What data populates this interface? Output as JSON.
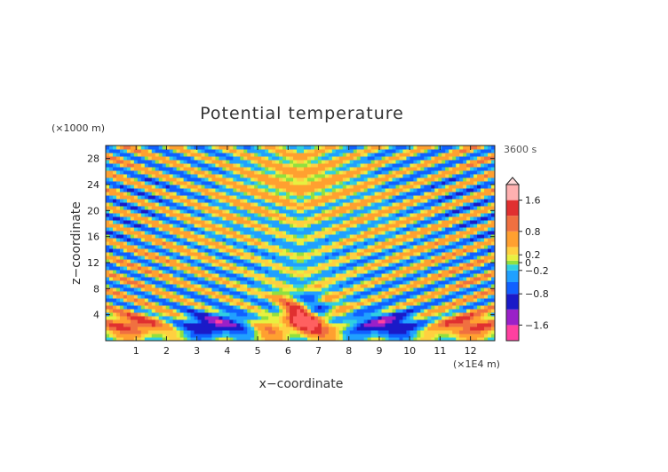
{
  "chart_data": {
    "type": "heatmap",
    "title": "Potential temperature",
    "xlabel": "x−coordinate",
    "ylabel": "z−coordinate",
    "x_unit": "(×1E4 m)",
    "y_unit": "(×1000 m)",
    "time_label": "3600 s",
    "x_range": [
      0,
      12.8
    ],
    "y_range": [
      0,
      30
    ],
    "x_ticks": [
      "1",
      "2",
      "3",
      "4",
      "5",
      "6",
      "7",
      "8",
      "9",
      "10",
      "11",
      "12"
    ],
    "y_ticks": [
      "4",
      "8",
      "12",
      "16",
      "20",
      "24",
      "28"
    ],
    "x_tick_values": [
      1,
      2,
      3,
      4,
      5,
      6,
      7,
      8,
      9,
      10,
      11,
      12
    ],
    "y_tick_values": [
      4,
      8,
      12,
      16,
      20,
      24,
      28
    ],
    "colorbar": {
      "range": [
        -2,
        2
      ],
      "labels": [
        "1.6",
        "0.8",
        "0.2",
        "0",
        "−0.2",
        "−0.8",
        "−1.6"
      ],
      "label_values": [
        1.6,
        0.8,
        0.2,
        0,
        -0.2,
        -0.8,
        -1.6
      ],
      "extend_max": true
    },
    "colors": {
      "c_neg_max": "#ff40a0",
      "c_neg_vhigh": "#9a20c8",
      "c_neg_high": "#1a1ac8",
      "c_neg_mid": "#1060ff",
      "c_neg_low": "#20a0ff",
      "c_neg_small": "#30d0e0",
      "c_zero_low": "#90e040",
      "c_zero_high": "#e8f040",
      "c_pos_small": "#ffd040",
      "c_pos_low": "#ffa030",
      "c_pos_mid": "#f07040",
      "c_pos_high": "#e03030",
      "c_pos_vhigh": "#ff6060",
      "c_pos_max": "#ffb0b0"
    }
  }
}
